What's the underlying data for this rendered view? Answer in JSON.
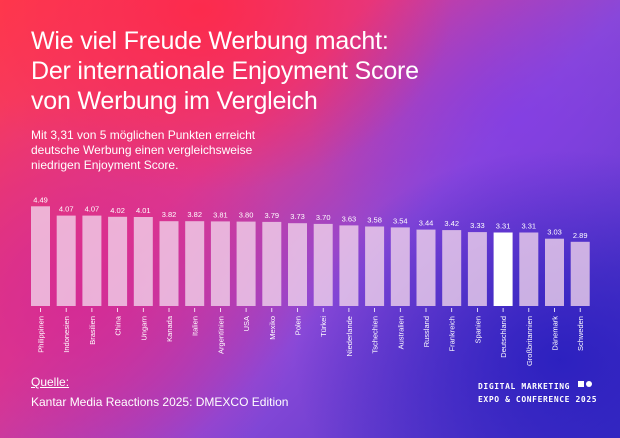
{
  "title": {
    "line1": "Wie viel Freude Werbung macht:",
    "line2": "Der internationale Enjoyment Score",
    "line3": "von Werbung im Vergleich"
  },
  "subtitle": {
    "line1": "Mit 3,31 von 5 möglichen Punkten erreicht",
    "line2": "deutsche Werbung einen vergleichsweise",
    "line3": "niedrigen Enjoyment Score."
  },
  "source": {
    "label": "Quelle:",
    "text": "Kantar Media Reactions 2025: DMEXCO Edition"
  },
  "brand": {
    "line1": "DIGITAL MARKETING",
    "line2": "EXPO & CONFERENCE 2025"
  },
  "colors": {
    "bar": "#f2d6ec",
    "highlight_bar": "#ffffff"
  },
  "chart_data": {
    "type": "bar",
    "categories": [
      "Philippinen",
      "Indonesien",
      "Brasilien",
      "China",
      "Ungarn",
      "Kanada",
      "Italien",
      "Argentinien",
      "USA",
      "Mexiko",
      "Polen",
      "Türkei",
      "Niederlande",
      "Tschechien",
      "Australien",
      "Russland",
      "Frankreich",
      "Spanien",
      "Deutschland",
      "Großbritannien",
      "Dänemark",
      "Schweden"
    ],
    "values": [
      4.49,
      4.07,
      4.07,
      4.02,
      4.01,
      3.82,
      3.82,
      3.81,
      3.8,
      3.79,
      3.73,
      3.7,
      3.63,
      3.58,
      3.54,
      3.44,
      3.42,
      3.33,
      3.31,
      3.31,
      3.03,
      2.89
    ],
    "value_labels": [
      "4.49",
      "4.07",
      "4.07",
      "4.02",
      "4.01",
      "3.82",
      "3.82",
      "3.81",
      "3.80",
      "3.79",
      "3.73",
      "3.70",
      "3.63",
      "3.58",
      "3.54",
      "3.44",
      "3.42",
      "3.33",
      "3.31",
      "3.31",
      "3.03",
      "2.89"
    ],
    "highlight": "Deutschland",
    "ylim": [
      0,
      5
    ],
    "grid": false,
    "legend": "none"
  }
}
